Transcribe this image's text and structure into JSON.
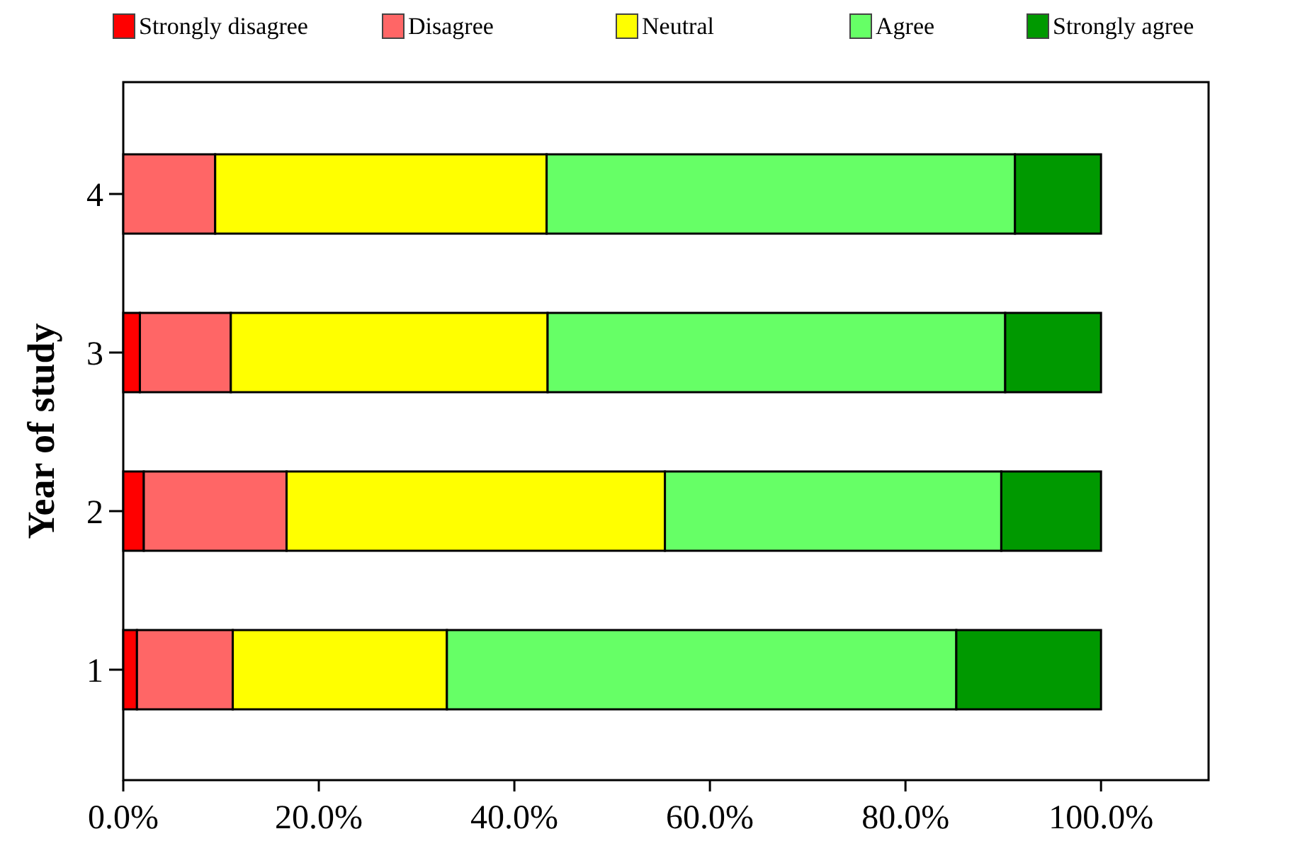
{
  "chart_data": {
    "type": "bar",
    "orientation": "horizontal",
    "stacked": true,
    "ylabel": "Year of study",
    "categories": [
      "4",
      "3",
      "2",
      "1"
    ],
    "series": [
      {
        "name": "Strongly disagree",
        "color": "#ff0000",
        "values": [
          0,
          1.7,
          2.1,
          1.4
        ]
      },
      {
        "name": "Disagree",
        "color": "#ff6666",
        "values": [
          9.4,
          9.3,
          14.6,
          9.8
        ]
      },
      {
        "name": "Neutral",
        "color": "#ffff00",
        "values": [
          33.9,
          32.4,
          38.7,
          21.9
        ]
      },
      {
        "name": "Agree",
        "color": "#66ff66",
        "values": [
          47.9,
          46.8,
          34.4,
          52.1
        ]
      },
      {
        "name": "Strongly agree",
        "color": "#009900",
        "values": [
          8.8,
          9.8,
          10.2,
          14.8
        ]
      }
    ],
    "xlim": [
      0,
      111
    ],
    "xticks": [
      {
        "value": 0,
        "label": "0.0%"
      },
      {
        "value": 20,
        "label": "20.0%"
      },
      {
        "value": 40,
        "label": "40.0%"
      },
      {
        "value": 60,
        "label": "60.0%"
      },
      {
        "value": 80,
        "label": "80.0%"
      },
      {
        "value": 100,
        "label": "100.0%"
      }
    ],
    "grid": false,
    "legend": "top"
  }
}
